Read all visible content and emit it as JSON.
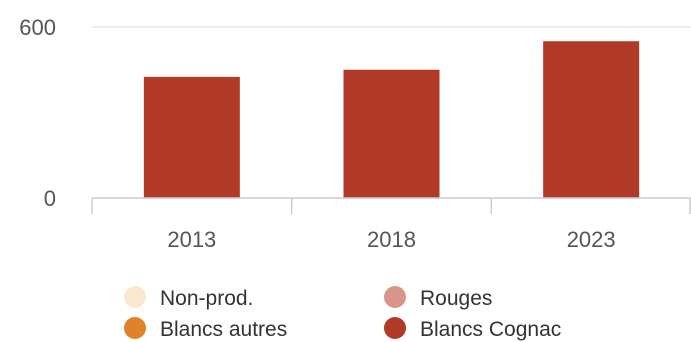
{
  "chart_data": {
    "type": "bar",
    "stacked": true,
    "categories": [
      "2013",
      "2018",
      "2023"
    ],
    "series": [
      {
        "name": "Non-prod.",
        "color": "#fbe6cf",
        "values": [
          0,
          0,
          0
        ]
      },
      {
        "name": "Blancs autres",
        "color": "#e0822a",
        "values": [
          0,
          0,
          0
        ]
      },
      {
        "name": "Rouges",
        "color": "#d9958a",
        "values": [
          0,
          0,
          0
        ]
      },
      {
        "name": "Blancs Cognac",
        "color": "#b03a25",
        "values": [
          425,
          450,
          550
        ]
      }
    ],
    "yticks": [
      0,
      600
    ],
    "ylim": [
      0,
      600
    ],
    "grid": true,
    "legend": {
      "placement": "bottom",
      "columns": 2,
      "order": [
        "Non-prod.",
        "Rouges",
        "Blancs autres",
        "Blancs Cognac"
      ]
    }
  }
}
